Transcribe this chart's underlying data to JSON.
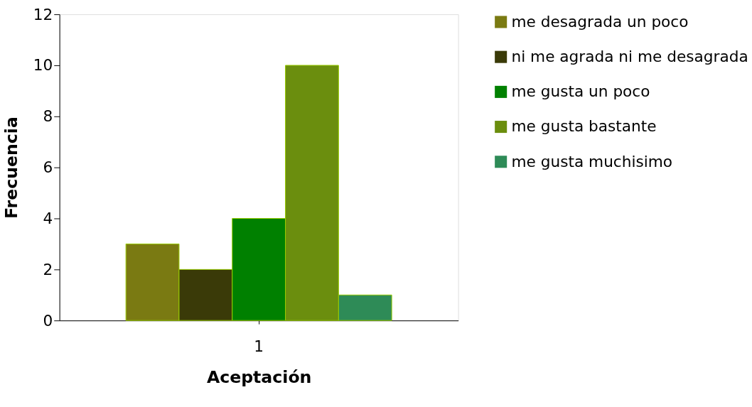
{
  "chart_data": {
    "type": "bar",
    "xlabel": "Aceptación",
    "ylabel": "Frecuencia",
    "categories": [
      "1"
    ],
    "series": [
      {
        "name": "me desagrada un poco",
        "color": "#7a7a12",
        "values": [
          3
        ]
      },
      {
        "name": "ni me agrada ni me desagrada",
        "color": "#3a3a08",
        "values": [
          2
        ]
      },
      {
        "name": "me gusta un poco",
        "color": "#008000",
        "values": [
          4
        ]
      },
      {
        "name": "me gusta bastante",
        "color": "#6b8e0e",
        "values": [
          10
        ]
      },
      {
        "name": "me gusta muchisimo",
        "color": "#2e8b57",
        "values": [
          1
        ]
      }
    ],
    "ylim": [
      0,
      12
    ],
    "yticks": [
      0,
      2,
      4,
      6,
      8,
      10,
      12
    ],
    "grid": false,
    "legend": "right"
  }
}
